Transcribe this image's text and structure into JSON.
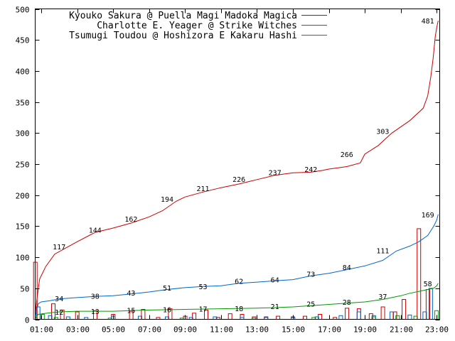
{
  "chart_data": {
    "type": "line",
    "xlim": [
      "00:40",
      "23:10"
    ],
    "ylim": [
      0,
      500
    ],
    "x_ticks": [
      "01:00",
      "03:00",
      "05:00",
      "07:00",
      "09:00",
      "11:00",
      "13:00",
      "15:00",
      "17:00",
      "19:00",
      "21:00",
      "23:00"
    ],
    "y_ticks": [
      0,
      50,
      100,
      150,
      200,
      250,
      300,
      350,
      400,
      450,
      500
    ],
    "grid": false,
    "legend_position": "top-left",
    "series": [
      {
        "name": "Kyouko Sakura @ Puella Magi Madoka Magica",
        "color": "#cc0000",
        "points": [
          [
            "00:40",
            10
          ],
          [
            "00:45",
            30
          ],
          [
            "00:55",
            65
          ],
          [
            "01:15",
            85
          ],
          [
            "01:45",
            105
          ],
          [
            "02:30",
            117
          ],
          [
            "03:00",
            125
          ],
          [
            "04:00",
            140
          ],
          [
            "05:00",
            147
          ],
          [
            "06:00",
            155
          ],
          [
            "07:00",
            165
          ],
          [
            "07:45",
            175
          ],
          [
            "08:30",
            190
          ],
          [
            "09:00",
            197
          ],
          [
            "10:00",
            205
          ],
          [
            "11:00",
            212
          ],
          [
            "12:00",
            218
          ],
          [
            "13:00",
            225
          ],
          [
            "14:00",
            232
          ],
          [
            "15:00",
            236
          ],
          [
            "16:00",
            237
          ],
          [
            "16:40",
            240
          ],
          [
            "17:00",
            242
          ],
          [
            "18:00",
            246
          ],
          [
            "18:45",
            252
          ],
          [
            "19:00",
            266
          ],
          [
            "19:45",
            280
          ],
          [
            "20:30",
            300
          ],
          [
            "21:30",
            320
          ],
          [
            "22:15",
            340
          ],
          [
            "22:30",
            360
          ],
          [
            "22:40",
            390
          ],
          [
            "22:48",
            420
          ],
          [
            "22:55",
            455
          ],
          [
            "23:00",
            470
          ],
          [
            "23:05",
            481
          ]
        ],
        "labels": [
          {
            "x": "02:00",
            "y": 117,
            "text": "117"
          },
          {
            "x": "04:00",
            "y": 144,
            "text": "144"
          },
          {
            "x": "06:00",
            "y": 162,
            "text": "162"
          },
          {
            "x": "08:00",
            "y": 194,
            "text": "194"
          },
          {
            "x": "10:00",
            "y": 211,
            "text": "211"
          },
          {
            "x": "12:00",
            "y": 226,
            "text": "226"
          },
          {
            "x": "14:00",
            "y": 237,
            "text": "237"
          },
          {
            "x": "16:00",
            "y": 242,
            "text": "242"
          },
          {
            "x": "18:00",
            "y": 266,
            "text": "266"
          },
          {
            "x": "20:00",
            "y": 303,
            "text": "303"
          },
          {
            "x": "22:30",
            "y": 481,
            "text": "481"
          }
        ],
        "bars": [
          [
            "00:50",
            92
          ],
          [
            "01:50",
            25
          ],
          [
            "02:20",
            15
          ],
          [
            "03:10",
            12
          ],
          [
            "04:10",
            14
          ],
          [
            "05:10",
            8
          ],
          [
            "06:10",
            13
          ],
          [
            "06:50",
            16
          ],
          [
            "07:40",
            3
          ],
          [
            "08:20",
            17
          ],
          [
            "09:10",
            5
          ],
          [
            "09:40",
            10
          ],
          [
            "10:20",
            15
          ],
          [
            "11:00",
            3
          ],
          [
            "11:40",
            9
          ],
          [
            "12:20",
            8
          ],
          [
            "13:00",
            4
          ],
          [
            "13:40",
            4
          ],
          [
            "14:20",
            5
          ],
          [
            "15:10",
            3
          ],
          [
            "15:50",
            5
          ],
          [
            "16:40",
            8
          ],
          [
            "17:30",
            3
          ],
          [
            "18:10",
            18
          ],
          [
            "18:50",
            17
          ],
          [
            "19:30",
            9
          ],
          [
            "20:10",
            20
          ],
          [
            "20:50",
            12
          ],
          [
            "21:20",
            32
          ],
          [
            "22:10",
            146
          ],
          [
            "22:40",
            48
          ]
        ]
      },
      {
        "name": "Charlotte E. Yeager @ Strike Witches",
        "color": "#0066cc",
        "points": [
          [
            "00:40",
            5
          ],
          [
            "00:50",
            25
          ],
          [
            "01:00",
            28
          ],
          [
            "01:30",
            30
          ],
          [
            "02:00",
            33
          ],
          [
            "03:00",
            35
          ],
          [
            "04:00",
            37
          ],
          [
            "05:00",
            38
          ],
          [
            "06:00",
            41
          ],
          [
            "07:00",
            44
          ],
          [
            "08:00",
            48
          ],
          [
            "09:00",
            51
          ],
          [
            "10:00",
            53
          ],
          [
            "11:00",
            54
          ],
          [
            "12:00",
            58
          ],
          [
            "13:00",
            60
          ],
          [
            "14:00",
            62
          ],
          [
            "15:00",
            64
          ],
          [
            "16:00",
            70
          ],
          [
            "17:00",
            74
          ],
          [
            "18:00",
            80
          ],
          [
            "19:00",
            86
          ],
          [
            "20:00",
            95
          ],
          [
            "20:45",
            110
          ],
          [
            "21:30",
            118
          ],
          [
            "22:00",
            125
          ],
          [
            "22:30",
            135
          ],
          [
            "22:50",
            150
          ],
          [
            "23:00",
            160
          ],
          [
            "23:05",
            169
          ]
        ],
        "labels": [
          {
            "x": "02:00",
            "y": 34,
            "text": "34"
          },
          {
            "x": "04:00",
            "y": 38,
            "text": "38"
          },
          {
            "x": "06:00",
            "y": 43,
            "text": "43"
          },
          {
            "x": "08:00",
            "y": 51,
            "text": "51"
          },
          {
            "x": "10:00",
            "y": 53,
            "text": "53"
          },
          {
            "x": "12:00",
            "y": 62,
            "text": "62"
          },
          {
            "x": "14:00",
            "y": 64,
            "text": "64"
          },
          {
            "x": "16:00",
            "y": 73,
            "text": "73"
          },
          {
            "x": "18:00",
            "y": 84,
            "text": "84"
          },
          {
            "x": "20:00",
            "y": 111,
            "text": "111"
          },
          {
            "x": "22:30",
            "y": 169,
            "text": "169"
          }
        ],
        "bars": [
          [
            "00:50",
            20
          ],
          [
            "01:30",
            6
          ],
          [
            "02:30",
            4
          ],
          [
            "03:30",
            3
          ],
          [
            "05:00",
            5
          ],
          [
            "06:30",
            5
          ],
          [
            "08:00",
            4
          ],
          [
            "09:20",
            3
          ],
          [
            "10:40",
            4
          ],
          [
            "12:10",
            3
          ],
          [
            "13:30",
            3
          ],
          [
            "15:00",
            4
          ],
          [
            "16:20",
            4
          ],
          [
            "17:40",
            6
          ],
          [
            "18:40",
            12
          ],
          [
            "19:30",
            6
          ],
          [
            "20:30",
            12
          ],
          [
            "21:30",
            7
          ],
          [
            "22:20",
            12
          ],
          [
            "22:40",
            50
          ]
        ]
      },
      {
        "name": "Tsumugi Toudou @ Hoshizora E Kakaru Hashi",
        "color": "#009900",
        "points": [
          [
            "00:40",
            2
          ],
          [
            "00:50",
            8
          ],
          [
            "01:20",
            10
          ],
          [
            "02:00",
            12
          ],
          [
            "03:00",
            13
          ],
          [
            "05:00",
            13
          ],
          [
            "07:00",
            15
          ],
          [
            "09:00",
            16
          ],
          [
            "11:00",
            17
          ],
          [
            "13:00",
            18
          ],
          [
            "15:00",
            20
          ],
          [
            "16:30",
            23
          ],
          [
            "17:30",
            25
          ],
          [
            "19:00",
            28
          ],
          [
            "20:00",
            32
          ],
          [
            "20:30",
            35
          ],
          [
            "21:00",
            38
          ],
          [
            "21:30",
            42
          ],
          [
            "22:00",
            45
          ],
          [
            "22:30",
            48
          ],
          [
            "22:50",
            50
          ],
          [
            "23:00",
            54
          ],
          [
            "23:05",
            58
          ]
        ],
        "labels": [
          {
            "x": "02:00",
            "y": 12,
            "text": "12"
          },
          {
            "x": "04:00",
            "y": 13,
            "text": "13"
          },
          {
            "x": "06:00",
            "y": 15,
            "text": "15"
          },
          {
            "x": "08:00",
            "y": 16,
            "text": "16"
          },
          {
            "x": "10:00",
            "y": 17,
            "text": "17"
          },
          {
            "x": "12:00",
            "y": 18,
            "text": "18"
          },
          {
            "x": "14:00",
            "y": 21,
            "text": "21"
          },
          {
            "x": "16:00",
            "y": 25,
            "text": "25"
          },
          {
            "x": "18:00",
            "y": 28,
            "text": "28"
          },
          {
            "x": "20:00",
            "y": 37,
            "text": "37"
          },
          {
            "x": "22:30",
            "y": 58,
            "text": "58"
          }
        ],
        "bars": [
          [
            "00:55",
            8
          ],
          [
            "01:40",
            3
          ],
          [
            "04:40",
            2
          ],
          [
            "08:40",
            2
          ],
          [
            "12:40",
            2
          ],
          [
            "16:00",
            3
          ],
          [
            "19:20",
            4
          ],
          [
            "20:40",
            6
          ],
          [
            "21:40",
            5
          ],
          [
            "22:50",
            14
          ]
        ]
      }
    ]
  }
}
